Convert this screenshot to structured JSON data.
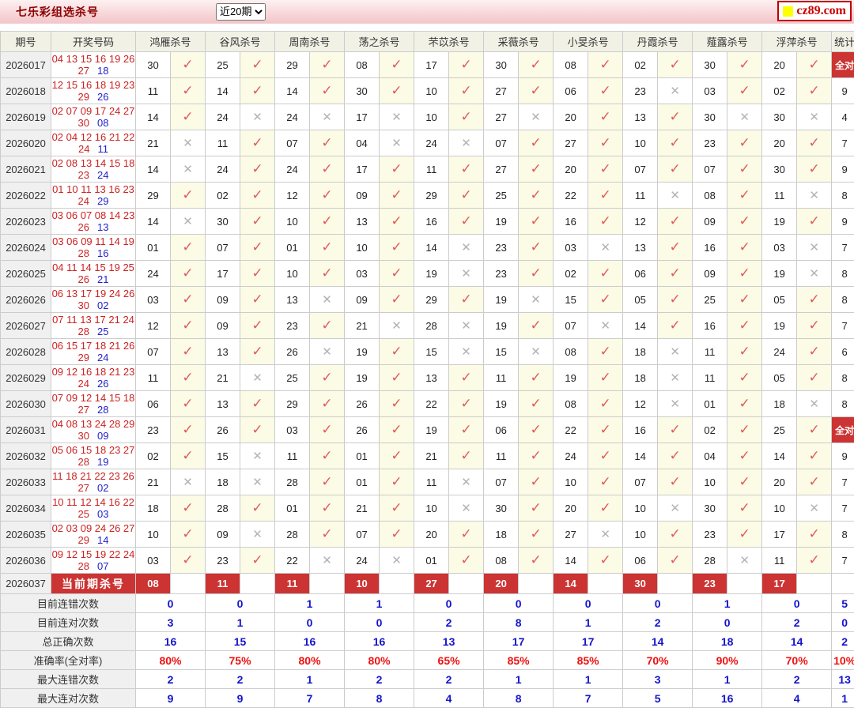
{
  "header": {
    "title": "七乐彩组选杀号",
    "period_select_value": "近20期",
    "logo_text": "cz89.com"
  },
  "icons": {
    "check": "✓",
    "cross": "✕",
    "logo_square": "yellow-square",
    "select_arrow": "chevron-down"
  },
  "colors": {
    "banner_red": "#cc3333",
    "check_red": "#e05a5a",
    "cross_gray": "#b3b3b3",
    "drawn_red": "#cc2222",
    "special_blue": "#2222cc",
    "summary_blue": "#1414cc",
    "summary_red": "#ee1111",
    "topbar_pink": "#f7d2d5"
  },
  "table": {
    "col_headers": [
      "期号",
      "开奖号码",
      "鸿雁杀号",
      "谷风杀号",
      "周南杀号",
      "荡之杀号",
      "芣苡杀号",
      "采薇杀号",
      "小旻杀号",
      "丹霞杀号",
      "薤露杀号",
      "浮萍杀号",
      "统计"
    ],
    "all_hit_label": "全对",
    "rows": [
      {
        "period": "2026017",
        "line1": "04 13 15 16 19 26",
        "tail": "27",
        "special": "18",
        "kills": [
          [
            "30",
            1
          ],
          [
            "25",
            1
          ],
          [
            "29",
            1
          ],
          [
            "08",
            1
          ],
          [
            "17",
            1
          ],
          [
            "30",
            1
          ],
          [
            "08",
            1
          ],
          [
            "02",
            1
          ],
          [
            "30",
            1
          ],
          [
            "20",
            1
          ]
        ],
        "stat": "全对"
      },
      {
        "period": "2026018",
        "line1": "12 15 16 18 19 23",
        "tail": "29",
        "special": "26",
        "kills": [
          [
            "11",
            1
          ],
          [
            "14",
            1
          ],
          [
            "14",
            1
          ],
          [
            "30",
            1
          ],
          [
            "10",
            1
          ],
          [
            "27",
            1
          ],
          [
            "06",
            1
          ],
          [
            "23",
            0
          ],
          [
            "03",
            1
          ],
          [
            "02",
            1
          ]
        ],
        "stat": "9"
      },
      {
        "period": "2026019",
        "line1": "02 07 09 17 24 27",
        "tail": "30",
        "special": "08",
        "kills": [
          [
            "14",
            1
          ],
          [
            "24",
            0
          ],
          [
            "24",
            0
          ],
          [
            "17",
            0
          ],
          [
            "10",
            1
          ],
          [
            "27",
            0
          ],
          [
            "20",
            1
          ],
          [
            "13",
            1
          ],
          [
            "30",
            0
          ],
          [
            "30",
            0
          ]
        ],
        "stat": "4"
      },
      {
        "period": "2026020",
        "line1": "02 04 12 16 21 22",
        "tail": "24",
        "special": "11",
        "kills": [
          [
            "21",
            0
          ],
          [
            "11",
            1
          ],
          [
            "07",
            1
          ],
          [
            "04",
            0
          ],
          [
            "24",
            0
          ],
          [
            "07",
            1
          ],
          [
            "27",
            1
          ],
          [
            "10",
            1
          ],
          [
            "23",
            1
          ],
          [
            "20",
            1
          ]
        ],
        "stat": "7"
      },
      {
        "period": "2026021",
        "line1": "02 08 13 14 15 18",
        "tail": "23",
        "special": "24",
        "kills": [
          [
            "14",
            0
          ],
          [
            "24",
            1
          ],
          [
            "24",
            1
          ],
          [
            "17",
            1
          ],
          [
            "11",
            1
          ],
          [
            "27",
            1
          ],
          [
            "20",
            1
          ],
          [
            "07",
            1
          ],
          [
            "07",
            1
          ],
          [
            "30",
            1
          ]
        ],
        "stat": "9"
      },
      {
        "period": "2026022",
        "line1": "01 10 11 13 16 23",
        "tail": "24",
        "special": "29",
        "kills": [
          [
            "29",
            1
          ],
          [
            "02",
            1
          ],
          [
            "12",
            1
          ],
          [
            "09",
            1
          ],
          [
            "29",
            1
          ],
          [
            "25",
            1
          ],
          [
            "22",
            1
          ],
          [
            "11",
            0
          ],
          [
            "08",
            1
          ],
          [
            "11",
            0
          ]
        ],
        "stat": "8"
      },
      {
        "period": "2026023",
        "line1": "03 06 07 08 14 23",
        "tail": "26",
        "special": "13",
        "kills": [
          [
            "14",
            0
          ],
          [
            "30",
            1
          ],
          [
            "10",
            1
          ],
          [
            "13",
            1
          ],
          [
            "16",
            1
          ],
          [
            "19",
            1
          ],
          [
            "16",
            1
          ],
          [
            "12",
            1
          ],
          [
            "09",
            1
          ],
          [
            "19",
            1
          ]
        ],
        "stat": "9"
      },
      {
        "period": "2026024",
        "line1": "03 06 09 11 14 19",
        "tail": "28",
        "special": "16",
        "kills": [
          [
            "01",
            1
          ],
          [
            "07",
            1
          ],
          [
            "01",
            1
          ],
          [
            "10",
            1
          ],
          [
            "14",
            0
          ],
          [
            "23",
            1
          ],
          [
            "03",
            0
          ],
          [
            "13",
            1
          ],
          [
            "16",
            1
          ],
          [
            "03",
            0
          ]
        ],
        "stat": "7"
      },
      {
        "period": "2026025",
        "line1": "04 11 14 15 19 25",
        "tail": "26",
        "special": "21",
        "kills": [
          [
            "24",
            1
          ],
          [
            "17",
            1
          ],
          [
            "10",
            1
          ],
          [
            "03",
            1
          ],
          [
            "19",
            0
          ],
          [
            "23",
            1
          ],
          [
            "02",
            1
          ],
          [
            "06",
            1
          ],
          [
            "09",
            1
          ],
          [
            "19",
            0
          ]
        ],
        "stat": "8"
      },
      {
        "period": "2026026",
        "line1": "06 13 17 19 24 26",
        "tail": "30",
        "special": "02",
        "kills": [
          [
            "03",
            1
          ],
          [
            "09",
            1
          ],
          [
            "13",
            0
          ],
          [
            "09",
            1
          ],
          [
            "29",
            1
          ],
          [
            "19",
            0
          ],
          [
            "15",
            1
          ],
          [
            "05",
            1
          ],
          [
            "25",
            1
          ],
          [
            "05",
            1
          ]
        ],
        "stat": "8"
      },
      {
        "period": "2026027",
        "line1": "07 11 13 17 21 24",
        "tail": "28",
        "special": "25",
        "kills": [
          [
            "12",
            1
          ],
          [
            "09",
            1
          ],
          [
            "23",
            1
          ],
          [
            "21",
            0
          ],
          [
            "28",
            0
          ],
          [
            "19",
            1
          ],
          [
            "07",
            0
          ],
          [
            "14",
            1
          ],
          [
            "16",
            1
          ],
          [
            "19",
            1
          ]
        ],
        "stat": "7"
      },
      {
        "period": "2026028",
        "line1": "06 15 17 18 21 26",
        "tail": "29",
        "special": "24",
        "kills": [
          [
            "07",
            1
          ],
          [
            "13",
            1
          ],
          [
            "26",
            0
          ],
          [
            "19",
            1
          ],
          [
            "15",
            0
          ],
          [
            "15",
            0
          ],
          [
            "08",
            1
          ],
          [
            "18",
            0
          ],
          [
            "11",
            1
          ],
          [
            "24",
            1
          ]
        ],
        "stat": "6"
      },
      {
        "period": "2026029",
        "line1": "09 12 16 18 21 23",
        "tail": "24",
        "special": "26",
        "kills": [
          [
            "11",
            1
          ],
          [
            "21",
            0
          ],
          [
            "25",
            1
          ],
          [
            "19",
            1
          ],
          [
            "13",
            1
          ],
          [
            "11",
            1
          ],
          [
            "19",
            1
          ],
          [
            "18",
            0
          ],
          [
            "11",
            1
          ],
          [
            "05",
            1
          ]
        ],
        "stat": "8"
      },
      {
        "period": "2026030",
        "line1": "07 09 12 14 15 18",
        "tail": "27",
        "special": "28",
        "kills": [
          [
            "06",
            1
          ],
          [
            "13",
            1
          ],
          [
            "29",
            1
          ],
          [
            "26",
            1
          ],
          [
            "22",
            1
          ],
          [
            "19",
            1
          ],
          [
            "08",
            1
          ],
          [
            "12",
            0
          ],
          [
            "01",
            1
          ],
          [
            "18",
            0
          ]
        ],
        "stat": "8"
      },
      {
        "period": "2026031",
        "line1": "04 08 13 24 28 29",
        "tail": "30",
        "special": "09",
        "kills": [
          [
            "23",
            1
          ],
          [
            "26",
            1
          ],
          [
            "03",
            1
          ],
          [
            "26",
            1
          ],
          [
            "19",
            1
          ],
          [
            "06",
            1
          ],
          [
            "22",
            1
          ],
          [
            "16",
            1
          ],
          [
            "02",
            1
          ],
          [
            "25",
            1
          ]
        ],
        "stat": "全对"
      },
      {
        "period": "2026032",
        "line1": "05 06 15 18 23 27",
        "tail": "28",
        "special": "19",
        "kills": [
          [
            "02",
            1
          ],
          [
            "15",
            0
          ],
          [
            "11",
            1
          ],
          [
            "01",
            1
          ],
          [
            "21",
            1
          ],
          [
            "11",
            1
          ],
          [
            "24",
            1
          ],
          [
            "14",
            1
          ],
          [
            "04",
            1
          ],
          [
            "14",
            1
          ]
        ],
        "stat": "9"
      },
      {
        "period": "2026033",
        "line1": "11 18 21 22 23 26",
        "tail": "27",
        "special": "02",
        "kills": [
          [
            "21",
            0
          ],
          [
            "18",
            0
          ],
          [
            "28",
            1
          ],
          [
            "01",
            1
          ],
          [
            "11",
            0
          ],
          [
            "07",
            1
          ],
          [
            "10",
            1
          ],
          [
            "07",
            1
          ],
          [
            "10",
            1
          ],
          [
            "20",
            1
          ]
        ],
        "stat": "7"
      },
      {
        "period": "2026034",
        "line1": "10 11 12 14 16 22",
        "tail": "25",
        "special": "03",
        "kills": [
          [
            "18",
            1
          ],
          [
            "28",
            1
          ],
          [
            "01",
            1
          ],
          [
            "21",
            1
          ],
          [
            "10",
            0
          ],
          [
            "30",
            1
          ],
          [
            "20",
            1
          ],
          [
            "10",
            0
          ],
          [
            "30",
            1
          ],
          [
            "10",
            0
          ]
        ],
        "stat": "7"
      },
      {
        "period": "2026035",
        "line1": "02 03 09 24 26 27",
        "tail": "29",
        "special": "14",
        "kills": [
          [
            "10",
            1
          ],
          [
            "09",
            0
          ],
          [
            "28",
            1
          ],
          [
            "07",
            1
          ],
          [
            "20",
            1
          ],
          [
            "18",
            1
          ],
          [
            "27",
            0
          ],
          [
            "10",
            1
          ],
          [
            "23",
            1
          ],
          [
            "17",
            1
          ]
        ],
        "stat": "8"
      },
      {
        "period": "2026036",
        "line1": "09 12 15 19 22 24",
        "tail": "28",
        "special": "07",
        "kills": [
          [
            "03",
            1
          ],
          [
            "23",
            1
          ],
          [
            "22",
            0
          ],
          [
            "24",
            0
          ],
          [
            "01",
            1
          ],
          [
            "08",
            1
          ],
          [
            "14",
            1
          ],
          [
            "06",
            1
          ],
          [
            "28",
            0
          ],
          [
            "11",
            1
          ]
        ],
        "stat": "7"
      }
    ],
    "current_row": {
      "period": "2026037",
      "label": "当前期杀号",
      "kills": [
        "08",
        "11",
        "11",
        "10",
        "27",
        "20",
        "14",
        "30",
        "23",
        "17"
      ],
      "stat": ""
    },
    "summary_rows": [
      {
        "label": "目前连错次数",
        "values": [
          "0",
          "0",
          "1",
          "1",
          "0",
          "0",
          "0",
          "0",
          "1",
          "0"
        ],
        "stat": "5",
        "style": "blue"
      },
      {
        "label": "目前连对次数",
        "values": [
          "3",
          "1",
          "0",
          "0",
          "2",
          "8",
          "1",
          "2",
          "0",
          "2"
        ],
        "stat": "0",
        "style": "blue"
      },
      {
        "label": "总正确次数",
        "values": [
          "16",
          "15",
          "16",
          "16",
          "13",
          "17",
          "17",
          "14",
          "18",
          "14"
        ],
        "stat": "2",
        "style": "blue"
      },
      {
        "label": "准确率(全对率)",
        "values": [
          "80%",
          "75%",
          "80%",
          "80%",
          "65%",
          "85%",
          "85%",
          "70%",
          "90%",
          "70%"
        ],
        "stat": "10%",
        "style": "red"
      },
      {
        "label": "最大连错次数",
        "values": [
          "2",
          "2",
          "1",
          "2",
          "2",
          "1",
          "1",
          "3",
          "1",
          "2"
        ],
        "stat": "13",
        "style": "blue"
      },
      {
        "label": "最大连对次数",
        "values": [
          "9",
          "9",
          "7",
          "8",
          "4",
          "8",
          "7",
          "5",
          "16",
          "4"
        ],
        "stat": "1",
        "style": "blue"
      }
    ]
  }
}
